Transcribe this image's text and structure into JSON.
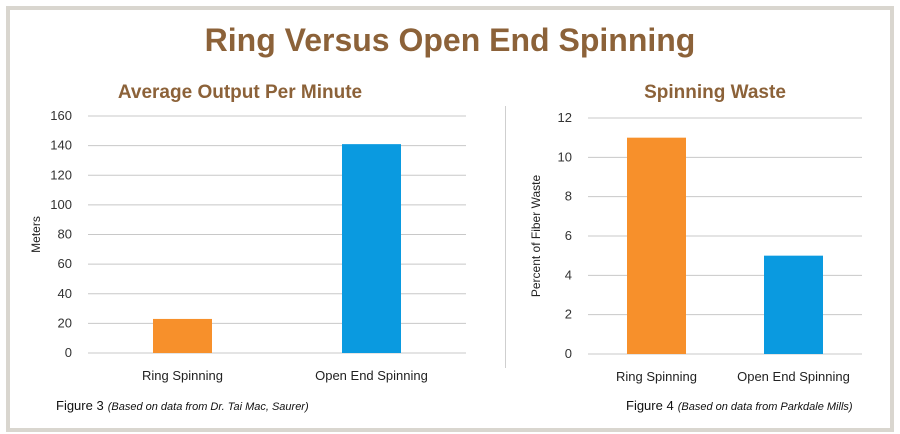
{
  "page": {
    "title": "Ring Versus Open End Spinning"
  },
  "colors": {
    "title": "#8c6239",
    "ring": "#f7902b",
    "open_end": "#0a9ae0",
    "grid": "#c8c8c8",
    "border": "#d9d6cf"
  },
  "chart_data": [
    {
      "type": "bar",
      "title": "Average Output Per Minute",
      "xlabel": "",
      "ylabel": "Meters",
      "categories": [
        "Ring Spinning",
        "Open End Spinning"
      ],
      "values": [
        23,
        141
      ],
      "ylim": [
        0,
        160
      ],
      "yticks": [
        "0",
        "20",
        "40",
        "60",
        "80",
        "100",
        "120",
        "140",
        "160"
      ],
      "grid": true,
      "caption": {
        "label": "Figure 3",
        "note": "(Based on data from Dr. Tai Mac, Saurer)"
      }
    },
    {
      "type": "bar",
      "title": "Spinning Waste",
      "xlabel": "",
      "ylabel": "Percent of Fiber Waste",
      "categories": [
        "Ring Spinning",
        "Open End Spinning"
      ],
      "values": [
        11,
        5
      ],
      "ylim": [
        0,
        12
      ],
      "yticks": [
        "0",
        "2",
        "4",
        "6",
        "8",
        "10",
        "12"
      ],
      "grid": true,
      "caption": {
        "label": "Figure 4",
        "note": "(Based on data from Parkdale Mills)"
      }
    }
  ]
}
